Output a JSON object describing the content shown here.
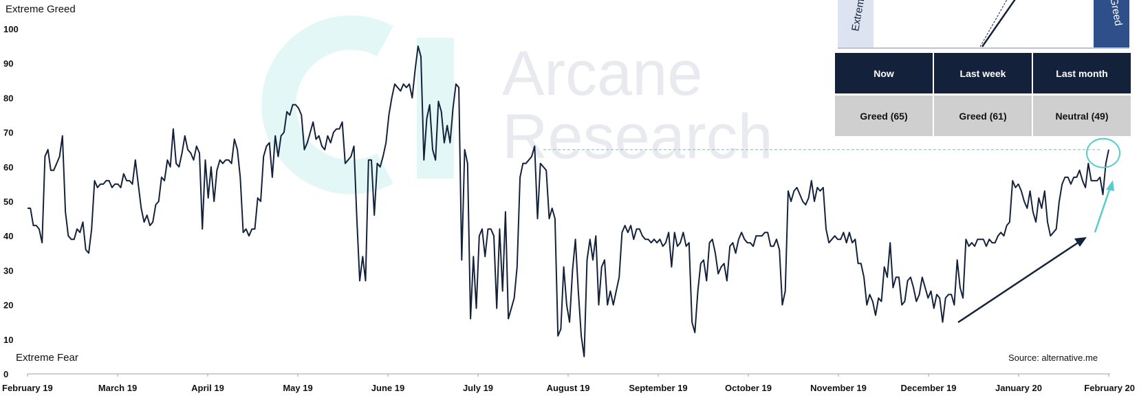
{
  "chart_data": {
    "type": "line",
    "label_top": "Extreme Greed",
    "label_bottom": "Extreme Fear",
    "source": "Source: alternative.me",
    "watermark": [
      "Arcane",
      "Research"
    ],
    "ylim": [
      0,
      100
    ],
    "yticks": [
      0,
      10,
      20,
      30,
      40,
      50,
      60,
      70,
      80,
      90,
      100
    ],
    "xlabels": [
      "February 19",
      "March 19",
      "April 19",
      "May 19",
      "June 19",
      "July 19",
      "August 19",
      "September 19",
      "October 19",
      "November 19",
      "December 19",
      "January 20",
      "February 20"
    ],
    "series": [
      {
        "color": "#13213b",
        "values": [
          48,
          48,
          43,
          43,
          42,
          38,
          63,
          65,
          59,
          59,
          61,
          63,
          69,
          47,
          40,
          39,
          39,
          42,
          41,
          44,
          36,
          35,
          42,
          56,
          54,
          55,
          55,
          56,
          56,
          54,
          55,
          55,
          54,
          58,
          56,
          56,
          55,
          62,
          55,
          48,
          44,
          46,
          43,
          44,
          49,
          50,
          57,
          56,
          62,
          60,
          71,
          61,
          60,
          64,
          69,
          65,
          64,
          62,
          66,
          64,
          42,
          62,
          51,
          60,
          50,
          59,
          62,
          61,
          62,
          62,
          61,
          68,
          65,
          57,
          41,
          42,
          40,
          42,
          42,
          51,
          50,
          63,
          66,
          67,
          57,
          69,
          63,
          69,
          70,
          76,
          75,
          78,
          78,
          77,
          75,
          65,
          67,
          70,
          73,
          68,
          69,
          66,
          65,
          69,
          67,
          70,
          71,
          71,
          73,
          61,
          62,
          63,
          66,
          45,
          27,
          34,
          27,
          62,
          62,
          46,
          61,
          60,
          63,
          67,
          75,
          80,
          84,
          83,
          82,
          84,
          83,
          84,
          80,
          88,
          95,
          92,
          62,
          74,
          78,
          65,
          62,
          79,
          76,
          67,
          72,
          67,
          77,
          84,
          83,
          33,
          65,
          61,
          16,
          34,
          19,
          40,
          42,
          34,
          42,
          42,
          40,
          19,
          42,
          24,
          47,
          16,
          19,
          22,
          31,
          57,
          61,
          61,
          62,
          63,
          66,
          45,
          61,
          60,
          59,
          45,
          48,
          45,
          11,
          13,
          31,
          20,
          15,
          30,
          39,
          24,
          11,
          5,
          33,
          39,
          33,
          40,
          20,
          31,
          33,
          20,
          24,
          20,
          24,
          28,
          41,
          43,
          41,
          43,
          39,
          42,
          42,
          40,
          39,
          39,
          38,
          39,
          38,
          39,
          37,
          38,
          41,
          31,
          41,
          37,
          38,
          41,
          37,
          38,
          15,
          12,
          24,
          32,
          33,
          27,
          38,
          39,
          35,
          29,
          31,
          32,
          27,
          37,
          38,
          35,
          39,
          41,
          39,
          38,
          38,
          37,
          40,
          40,
          40,
          41,
          41,
          37,
          37,
          39,
          36,
          20,
          24,
          53,
          50,
          53,
          54,
          52,
          50,
          49,
          51,
          56,
          50,
          54,
          53,
          54,
          42,
          38,
          39,
          40,
          39,
          39,
          41,
          38,
          41,
          38,
          39,
          32,
          32,
          28,
          20,
          23,
          21,
          17,
          22,
          21,
          31,
          28,
          38,
          25,
          28,
          28,
          20,
          21,
          27,
          28,
          25,
          21,
          23,
          28,
          25,
          22,
          24,
          19,
          23,
          22,
          15,
          22,
          23,
          23,
          20,
          33,
          25,
          22,
          39,
          37,
          38,
          37,
          39,
          39,
          39,
          37,
          39,
          38,
          38,
          40,
          41,
          40,
          43,
          44,
          56,
          54,
          55,
          53,
          50,
          48,
          53,
          47,
          44,
          51,
          48,
          53,
          44,
          40,
          41,
          42,
          50,
          55,
          57,
          57,
          55,
          57,
          57,
          59,
          56,
          54,
          61,
          56,
          56,
          56,
          57,
          52,
          61,
          65
        ]
      }
    ],
    "highlight_value": 65
  },
  "gauge": {
    "left_label": "Extreme Fear",
    "right_label": "Extreme Greed",
    "needle_value": 65
  },
  "sentiment_table": {
    "headers": [
      "Now",
      "Last week",
      "Last month"
    ],
    "values": [
      "Greed (65)",
      "Greed (61)",
      "Neutral (49)"
    ]
  }
}
